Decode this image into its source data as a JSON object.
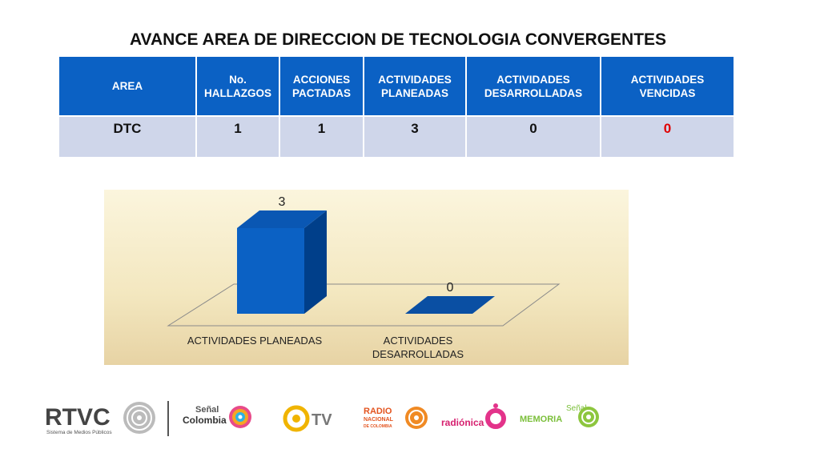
{
  "title": "AVANCE AREA DE DIRECCION DE TECNOLOGIA CONVERGENTES",
  "table": {
    "headers": [
      [
        "AREA"
      ],
      [
        "No.",
        "HALLAZGOS"
      ],
      [
        "ACCIONES",
        "PACTADAS"
      ],
      [
        "ACTIVIDADES",
        "PLANEADAS"
      ],
      [
        "ACTIVIDADES",
        "DESARROLLADAS"
      ],
      [
        "ACTIVIDADES",
        "VENCIDAS"
      ]
    ],
    "row": [
      "DTC",
      "1",
      "1",
      "3",
      "0",
      "0"
    ],
    "highlight_color": "#e00000"
  },
  "chart_data": {
    "type": "bar",
    "categories": [
      "ACTIVIDADES PLANEADAS",
      "ACTIVIDADES DESARROLLADAS"
    ],
    "category_lines": [
      [
        "ACTIVIDADES PLANEADAS"
      ],
      [
        "ACTIVIDADES",
        "DESARROLLADAS"
      ]
    ],
    "values": [
      3,
      0
    ],
    "data_labels": [
      "3",
      "0"
    ],
    "ylim": [
      0,
      3
    ],
    "grid": false,
    "legend": "none",
    "bar_color": "#0b61c4"
  },
  "logos": {
    "rtvc": "RTVC",
    "rtvc_sub": "Sistema de Medios Públicos",
    "senal": "Señal",
    "colombia": "Colombia",
    "tv": "TV",
    "radio": "RADIO",
    "nacional": "NACIONAL",
    "decolombia": "DE COLOMBIA",
    "radionica": "radiónica",
    "senal2": "Señal",
    "memoria": "MEMORIA"
  }
}
